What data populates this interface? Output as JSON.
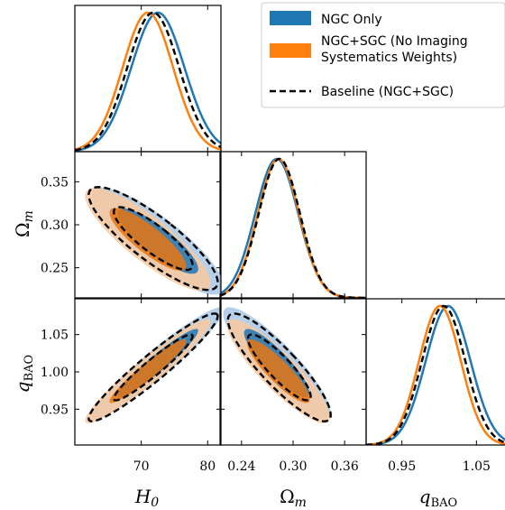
{
  "chart_data": {
    "type": "corner",
    "parameters": [
      {
        "name": "H0",
        "label": "H",
        "label_sub": "0",
        "range": [
          60,
          82
        ],
        "ticks": [
          70,
          80
        ],
        "tick_labels": [
          "70",
          "80"
        ]
      },
      {
        "name": "Omega_m",
        "label": "Ω",
        "label_sub": "m",
        "range": [
          0.215,
          0.385
        ],
        "ticks": [
          0.24,
          0.3,
          0.36
        ],
        "tick_labels": [
          "0.24",
          "0.30",
          "0.36"
        ],
        "y_ticks": [
          0.25,
          0.3,
          0.35
        ],
        "y_tick_labels": [
          "0.25",
          "0.30",
          "0.35"
        ]
      },
      {
        "name": "q_BAO",
        "label": "q",
        "label_sub": "BAO",
        "range": [
          0.902,
          1.098
        ],
        "ticks": [
          0.95,
          1.05
        ],
        "tick_labels": [
          "0.95",
          "1.05"
        ],
        "y_ticks": [
          0.95,
          1.0,
          1.05
        ],
        "y_tick_labels": [
          "0.95",
          "1.00",
          "1.05"
        ]
      }
    ],
    "series": [
      {
        "name": "NGC Only",
        "color": "#1f77b4",
        "style": "filled",
        "mean": [
          72.5,
          0.281,
          1.012
        ],
        "sigma": [
          4.0,
          0.025,
          0.03
        ],
        "rho": {
          "0-1": -0.85,
          "0-2": 0.95,
          "1-2": -0.88
        }
      },
      {
        "name": "NGC+SGC (No Imaging Systematics Weights)",
        "color": "#ff7f0e",
        "style": "filled",
        "mean": [
          71.0,
          0.283,
          1.001
        ],
        "sigma": [
          3.8,
          0.024,
          0.028
        ],
        "rho": {
          "0-1": -0.85,
          "0-2": 0.95,
          "1-2": -0.88
        }
      },
      {
        "name": "Baseline (NGC+SGC)",
        "color": "#000000",
        "style": "dashed",
        "mean": [
          71.8,
          0.284,
          1.006
        ],
        "sigma": [
          3.9,
          0.024,
          0.029
        ],
        "rho": {
          "0-1": -0.85,
          "0-2": 0.95,
          "1-2": -0.88
        }
      }
    ],
    "legend": {
      "placement": "top-right"
    }
  },
  "colors": {
    "ngc_inner": "#1f77b4",
    "ngc_outer": "#a8c8e4",
    "sgc_inner": "#e67512",
    "sgc_outer": "#f8c9a0"
  }
}
